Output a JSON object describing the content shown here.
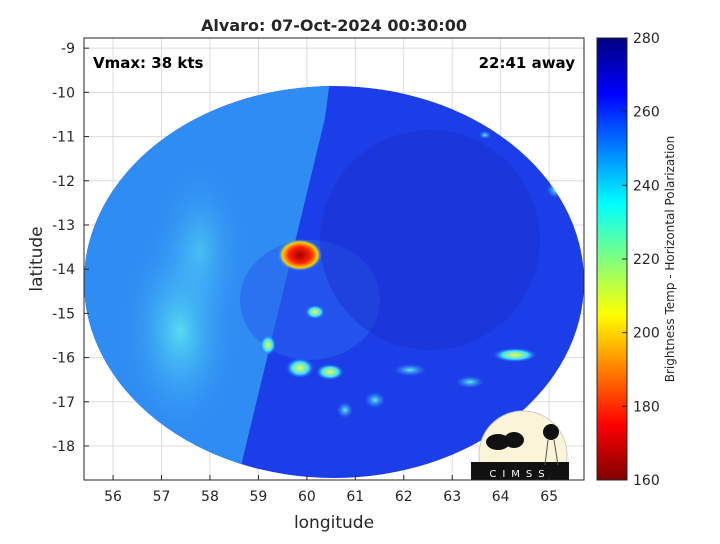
{
  "chart_data": {
    "type": "heatmap",
    "title": "Alvaro: 07-Oct-2024 00:30:00",
    "xlabel": "longitude",
    "ylabel": "latitude",
    "xlim": [
      55.4,
      65.72
    ],
    "ylim": [
      -18.77,
      -8.77
    ],
    "xticks": [
      56,
      57,
      58,
      59,
      60,
      61,
      62,
      63,
      64,
      65
    ],
    "yticks": [
      -9,
      -10,
      -11,
      -12,
      -13,
      -14,
      -15,
      -16,
      -17,
      -18
    ],
    "grid": true,
    "annotations": {
      "left": "Vmax: 38 kts",
      "right": "22:41 away"
    },
    "colorbar": {
      "label": "Brightness Temp - Horizontal Polarization",
      "range": [
        160,
        280
      ],
      "ticks": [
        160,
        180,
        200,
        220,
        240,
        260,
        280
      ],
      "colormap": "jet"
    },
    "features": [
      {
        "name": "cold core",
        "lon": 59.95,
        "lat": -13.75,
        "value": 175
      },
      {
        "name": "warm band",
        "lon": 59.8,
        "lat": -16.2,
        "value": 215
      },
      {
        "name": "warm band",
        "lon": 64.3,
        "lat": -16.0,
        "value": 220
      }
    ],
    "logo": "CIMSS"
  }
}
